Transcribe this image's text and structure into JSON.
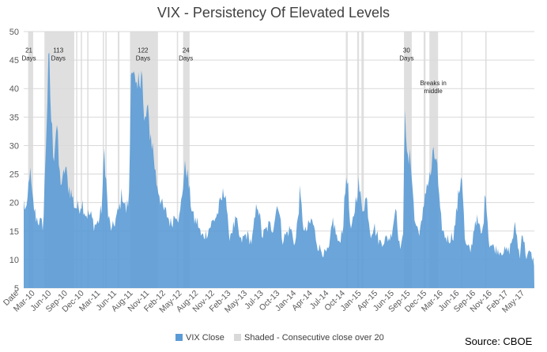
{
  "chart_data": {
    "type": "area",
    "title": "VIX - Persistency Of Elevated Levels",
    "xlabel": "",
    "ylabel": "",
    "ylim": [
      5,
      50
    ],
    "yticks": [
      5,
      10,
      15,
      20,
      25,
      30,
      35,
      40,
      45,
      50
    ],
    "xlim": [
      "2010-01-04",
      "2017-07-24"
    ],
    "x_tick_labels": [
      "Date",
      "Mar-10",
      "Jun-10",
      "Sep-10",
      "Dec-10",
      "Mar-11",
      "Jun-11",
      "Aug-11",
      "Nov-11",
      "Feb-12",
      "May-12",
      "Aug-12",
      "Nov-12",
      "Feb-13",
      "May-13",
      "Jul-13",
      "Oct-13",
      "Jan-14",
      "Apr-14",
      "Jul-14",
      "Oct-14",
      "Jan-15",
      "Apr-15",
      "Jun-15",
      "Sep-15",
      "Dec-15",
      "Mar-16",
      "Jun-16",
      "Sep-16",
      "Nov-16",
      "Feb-17",
      "May-17"
    ],
    "grid": true,
    "legend_position": "bottom",
    "source_text": "Source: CBOE",
    "series": [
      {
        "name": "VIX Close",
        "color": "#5b9bd5",
        "points": [
          [
            "2010-01-04",
            20.0
          ],
          [
            "2010-01-20",
            18.0
          ],
          [
            "2010-02-05",
            26.1
          ],
          [
            "2010-02-20",
            20.5
          ],
          [
            "2010-03-10",
            17.5
          ],
          [
            "2010-04-01",
            16.5
          ],
          [
            "2010-04-20",
            16.0
          ],
          [
            "2010-05-06",
            32.8
          ],
          [
            "2010-05-20",
            45.8
          ],
          [
            "2010-06-01",
            35.0
          ],
          [
            "2010-06-15",
            28.0
          ],
          [
            "2010-07-01",
            34.5
          ],
          [
            "2010-07-15",
            25.0
          ],
          [
            "2010-08-01",
            23.0
          ],
          [
            "2010-08-15",
            26.5
          ],
          [
            "2010-09-01",
            23.0
          ],
          [
            "2010-09-20",
            21.5
          ],
          [
            "2010-10-05",
            19.5
          ],
          [
            "2010-10-25",
            19.0
          ],
          [
            "2010-11-15",
            20.2
          ],
          [
            "2010-12-05",
            18.0
          ],
          [
            "2010-12-31",
            17.8
          ],
          [
            "2011-01-20",
            16.0
          ],
          [
            "2011-02-10",
            16.5
          ],
          [
            "2011-03-01",
            19.0
          ],
          [
            "2011-03-16",
            29.4
          ],
          [
            "2011-04-05",
            17.5
          ],
          [
            "2011-04-25",
            15.0
          ],
          [
            "2011-05-15",
            17.0
          ],
          [
            "2011-06-01",
            18.5
          ],
          [
            "2011-06-20",
            21.8
          ],
          [
            "2011-07-10",
            18.5
          ],
          [
            "2011-07-28",
            21.0
          ],
          [
            "2011-08-08",
            48.0
          ],
          [
            "2011-08-20",
            42.0
          ],
          [
            "2011-09-05",
            38.0
          ],
          [
            "2011-09-20",
            41.5
          ],
          [
            "2011-10-03",
            45.5
          ],
          [
            "2011-10-15",
            33.0
          ],
          [
            "2011-11-01",
            36.0
          ],
          [
            "2011-11-20",
            32.0
          ],
          [
            "2011-12-05",
            29.0
          ],
          [
            "2011-12-20",
            24.0
          ],
          [
            "2012-01-05",
            22.0
          ],
          [
            "2012-01-25",
            18.8
          ],
          [
            "2012-02-15",
            18.0
          ],
          [
            "2012-03-10",
            16.2
          ],
          [
            "2012-04-05",
            18.5
          ],
          [
            "2012-04-25",
            17.0
          ],
          [
            "2012-05-18",
            25.0
          ],
          [
            "2012-06-01",
            26.6
          ],
          [
            "2012-06-20",
            21.0
          ],
          [
            "2012-07-10",
            17.0
          ],
          [
            "2012-08-01",
            16.5
          ],
          [
            "2012-08-20",
            14.0
          ],
          [
            "2012-09-15",
            14.5
          ],
          [
            "2012-10-10",
            16.0
          ],
          [
            "2012-11-15",
            18.0
          ],
          [
            "2012-12-28",
            22.7
          ],
          [
            "2013-01-15",
            14.0
          ],
          [
            "2013-02-25",
            16.8
          ],
          [
            "2013-03-20",
            13.0
          ],
          [
            "2013-04-20",
            14.5
          ],
          [
            "2013-05-20",
            13.0
          ],
          [
            "2013-06-20",
            20.5
          ],
          [
            "2013-07-15",
            14.0
          ],
          [
            "2013-08-20",
            16.0
          ],
          [
            "2013-09-10",
            15.5
          ],
          [
            "2013-10-08",
            20.3
          ],
          [
            "2013-11-01",
            13.5
          ],
          [
            "2013-12-15",
            15.5
          ],
          [
            "2014-01-10",
            12.5
          ],
          [
            "2014-02-03",
            21.4
          ],
          [
            "2014-03-01",
            14.5
          ],
          [
            "2014-04-10",
            17.0
          ],
          [
            "2014-05-10",
            12.5
          ],
          [
            "2014-06-15",
            11.0
          ],
          [
            "2014-07-10",
            11.5
          ],
          [
            "2014-08-01",
            17.0
          ],
          [
            "2014-09-01",
            12.5
          ],
          [
            "2014-09-25",
            16.0
          ],
          [
            "2014-10-15",
            26.2
          ],
          [
            "2014-11-05",
            14.0
          ],
          [
            "2014-12-16",
            23.6
          ],
          [
            "2015-01-05",
            19.0
          ],
          [
            "2015-01-30",
            20.9
          ],
          [
            "2015-02-20",
            14.5
          ],
          [
            "2015-03-10",
            16.0
          ],
          [
            "2015-04-10",
            13.0
          ],
          [
            "2015-05-10",
            13.5
          ],
          [
            "2015-06-10",
            14.0
          ],
          [
            "2015-07-08",
            19.7
          ],
          [
            "2015-07-25",
            12.5
          ],
          [
            "2015-08-15",
            13.0
          ],
          [
            "2015-08-24",
            40.7
          ],
          [
            "2015-09-05",
            27.0
          ],
          [
            "2015-09-28",
            27.6
          ],
          [
            "2015-10-15",
            17.0
          ],
          [
            "2015-11-05",
            15.0
          ],
          [
            "2015-11-25",
            16.0
          ],
          [
            "2015-12-14",
            22.7
          ],
          [
            "2016-01-10",
            24.5
          ],
          [
            "2016-01-20",
            27.6
          ],
          [
            "2016-02-11",
            28.1
          ],
          [
            "2016-03-01",
            18.0
          ],
          [
            "2016-03-20",
            14.5
          ],
          [
            "2016-04-15",
            13.5
          ],
          [
            "2016-05-15",
            14.5
          ],
          [
            "2016-06-27",
            25.8
          ],
          [
            "2016-07-15",
            12.5
          ],
          [
            "2016-08-15",
            11.5
          ],
          [
            "2016-09-10",
            17.5
          ],
          [
            "2016-10-15",
            14.0
          ],
          [
            "2016-11-04",
            22.5
          ],
          [
            "2016-11-20",
            13.0
          ],
          [
            "2016-12-20",
            12.0
          ],
          [
            "2017-01-20",
            11.5
          ],
          [
            "2017-02-20",
            11.5
          ],
          [
            "2017-03-10",
            11.5
          ],
          [
            "2017-04-13",
            15.9
          ],
          [
            "2017-05-08",
            9.8
          ],
          [
            "2017-05-17",
            15.6
          ],
          [
            "2017-06-10",
            10.5
          ],
          [
            "2017-07-01",
            11.2
          ],
          [
            "2017-07-24",
            9.4
          ]
        ]
      },
      {
        "name": "Shaded - Consecutive close over 20",
        "color": "#d9d9d9",
        "ranges": [
          [
            "2010-01-28",
            "2010-02-24"
          ],
          [
            "2010-04-26",
            "2010-10-04"
          ],
          [
            "2010-10-14",
            "2010-10-20"
          ],
          [
            "2010-11-08",
            "2010-11-15"
          ],
          [
            "2010-12-13",
            "2010-12-20"
          ],
          [
            "2011-03-07",
            "2011-03-13"
          ],
          [
            "2011-03-21",
            "2011-03-28"
          ],
          [
            "2011-05-27",
            "2011-06-05"
          ],
          [
            "2011-08-01",
            "2011-12-30"
          ],
          [
            "2012-04-10",
            "2012-04-17"
          ],
          [
            "2012-05-14",
            "2012-06-18"
          ],
          [
            "2014-10-10",
            "2014-10-20"
          ],
          [
            "2014-12-10",
            "2014-12-20"
          ],
          [
            "2015-01-02",
            "2015-01-15"
          ],
          [
            "2015-08-20",
            "2015-10-01"
          ],
          [
            "2015-12-04",
            "2015-12-14"
          ],
          [
            "2016-01-04",
            "2016-02-20"
          ],
          [
            "2016-06-24",
            "2016-06-30"
          ],
          [
            "2016-11-01",
            "2016-11-08"
          ]
        ]
      }
    ],
    "annotations": [
      {
        "date": "2010-02-01",
        "value": 46.3,
        "lines": [
          "21",
          "Days"
        ]
      },
      {
        "date": "2010-07-10",
        "value": 46.3,
        "lines": [
          "113",
          "Days"
        ]
      },
      {
        "date": "2011-10-10",
        "value": 46.3,
        "lines": [
          "122",
          "Days"
        ]
      },
      {
        "date": "2012-05-29",
        "value": 46.3,
        "lines": [
          "24",
          "Days"
        ]
      },
      {
        "date": "2015-09-03",
        "value": 46.3,
        "lines": [
          "30",
          "Days"
        ]
      },
      {
        "date": "2016-01-25",
        "value": 40.6,
        "lines": [
          "Breaks in",
          "middle"
        ]
      }
    ]
  }
}
